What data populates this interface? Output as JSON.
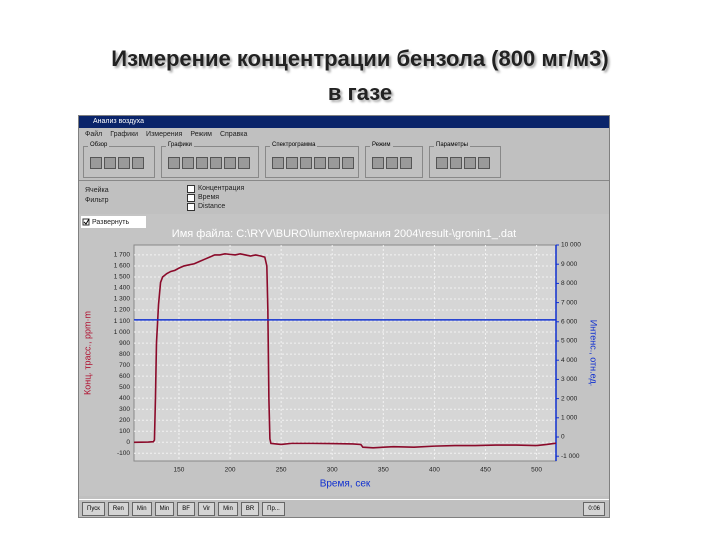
{
  "slide": {
    "title_line1": "Измерение концентрации бензола (800 мг/м3)",
    "title_line2": "в газе"
  },
  "window": {
    "title": "Анализ воздуха",
    "menu": [
      "Файл",
      "Графики",
      "Измерения",
      "Режим",
      "Справка"
    ],
    "groups": [
      "Обзор",
      "Графики",
      "Спектрограмма",
      "Режим",
      "Параметры"
    ],
    "side_labels": [
      "Ячейка",
      "Фильтр"
    ],
    "checkboxes": [
      "Концентрация",
      "Время",
      "Distance"
    ],
    "chart_toggle": "Развернуть"
  },
  "chart_data": {
    "type": "line",
    "title": "Имя файла: C:\\RYV\\BURO\\lumex\\германия 2004\\result-\\gronin1_.dat",
    "x_label": "Время, сек",
    "y_label": "Конц. трасс., ppm·m",
    "y2_label": "Интенс., отн.ед.",
    "x": [
      106,
      120,
      125,
      126,
      127,
      128,
      130,
      132,
      134,
      138,
      142,
      146,
      150,
      155,
      160,
      165,
      170,
      175,
      180,
      185,
      190,
      195,
      200,
      205,
      210,
      215,
      220,
      225,
      230,
      234,
      236,
      237,
      238,
      239,
      240,
      245,
      250,
      260,
      280,
      300,
      320,
      328,
      330,
      340,
      360,
      380,
      400,
      420,
      440,
      460,
      480,
      500,
      510,
      519
    ],
    "series": [
      {
        "color": "#8b0a2a",
        "values": [
          0,
          2,
          5,
          20,
          400,
          900,
          1250,
          1450,
          1500,
          1530,
          1550,
          1560,
          1580,
          1600,
          1610,
          1620,
          1640,
          1660,
          1680,
          1700,
          1700,
          1710,
          1705,
          1700,
          1710,
          1700,
          1690,
          1700,
          1690,
          1680,
          1600,
          1200,
          400,
          30,
          -10,
          -15,
          -20,
          -10,
          -10,
          -12,
          -15,
          -20,
          -45,
          -50,
          -40,
          -45,
          -35,
          -30,
          -30,
          -25,
          -25,
          -30,
          -20,
          -8
        ]
      },
      {
        "color": "#1030d0",
        "axis": "y2",
        "x": [
          106,
          519
        ],
        "values": [
          6100,
          6100
        ]
      }
    ],
    "xlim": [
      106,
      519
    ],
    "ylim": [
      -170,
      1790
    ],
    "y2lim": [
      -1250,
      10000
    ],
    "xticks": [
      150,
      200,
      250,
      300,
      350,
      400,
      450,
      500
    ],
    "yticks": [
      -100,
      0,
      100,
      200,
      300,
      400,
      500,
      600,
      700,
      800,
      900,
      {
        "value": 1000,
        "label": "1 000"
      },
      {
        "value": 1100,
        "label": "1 100"
      },
      {
        "value": 1200,
        "label": "1 200"
      },
      {
        "value": 1300,
        "label": "1 300"
      },
      {
        "value": 1400,
        "label": "1 400"
      },
      {
        "value": 1500,
        "label": "1 500"
      },
      {
        "value": 1600,
        "label": "1 600"
      },
      {
        "value": 1700,
        "label": "1 700"
      }
    ],
    "y2ticks": [
      {
        "value": -1000,
        "label": "-1 000"
      },
      0,
      {
        "value": 1000,
        "label": "1 000"
      },
      {
        "value": 2000,
        "label": "2 000"
      },
      {
        "value": 3000,
        "label": "3 000"
      },
      {
        "value": 4000,
        "label": "4 000"
      },
      {
        "value": 5000,
        "label": "5 000"
      },
      {
        "value": 6000,
        "label": "6 000"
      },
      {
        "value": 7000,
        "label": "7 000"
      },
      {
        "value": 8000,
        "label": "8 000"
      },
      {
        "value": 9000,
        "label": "9 000"
      },
      {
        "value": 10000,
        "label": "10 000"
      }
    ],
    "grid": true
  },
  "taskbar": {
    "items": [
      "Пуск",
      "Ren",
      "Min",
      "Min",
      "BF",
      "Vir",
      "Min",
      "BR",
      "Пр..."
    ],
    "clock": "0:06"
  }
}
